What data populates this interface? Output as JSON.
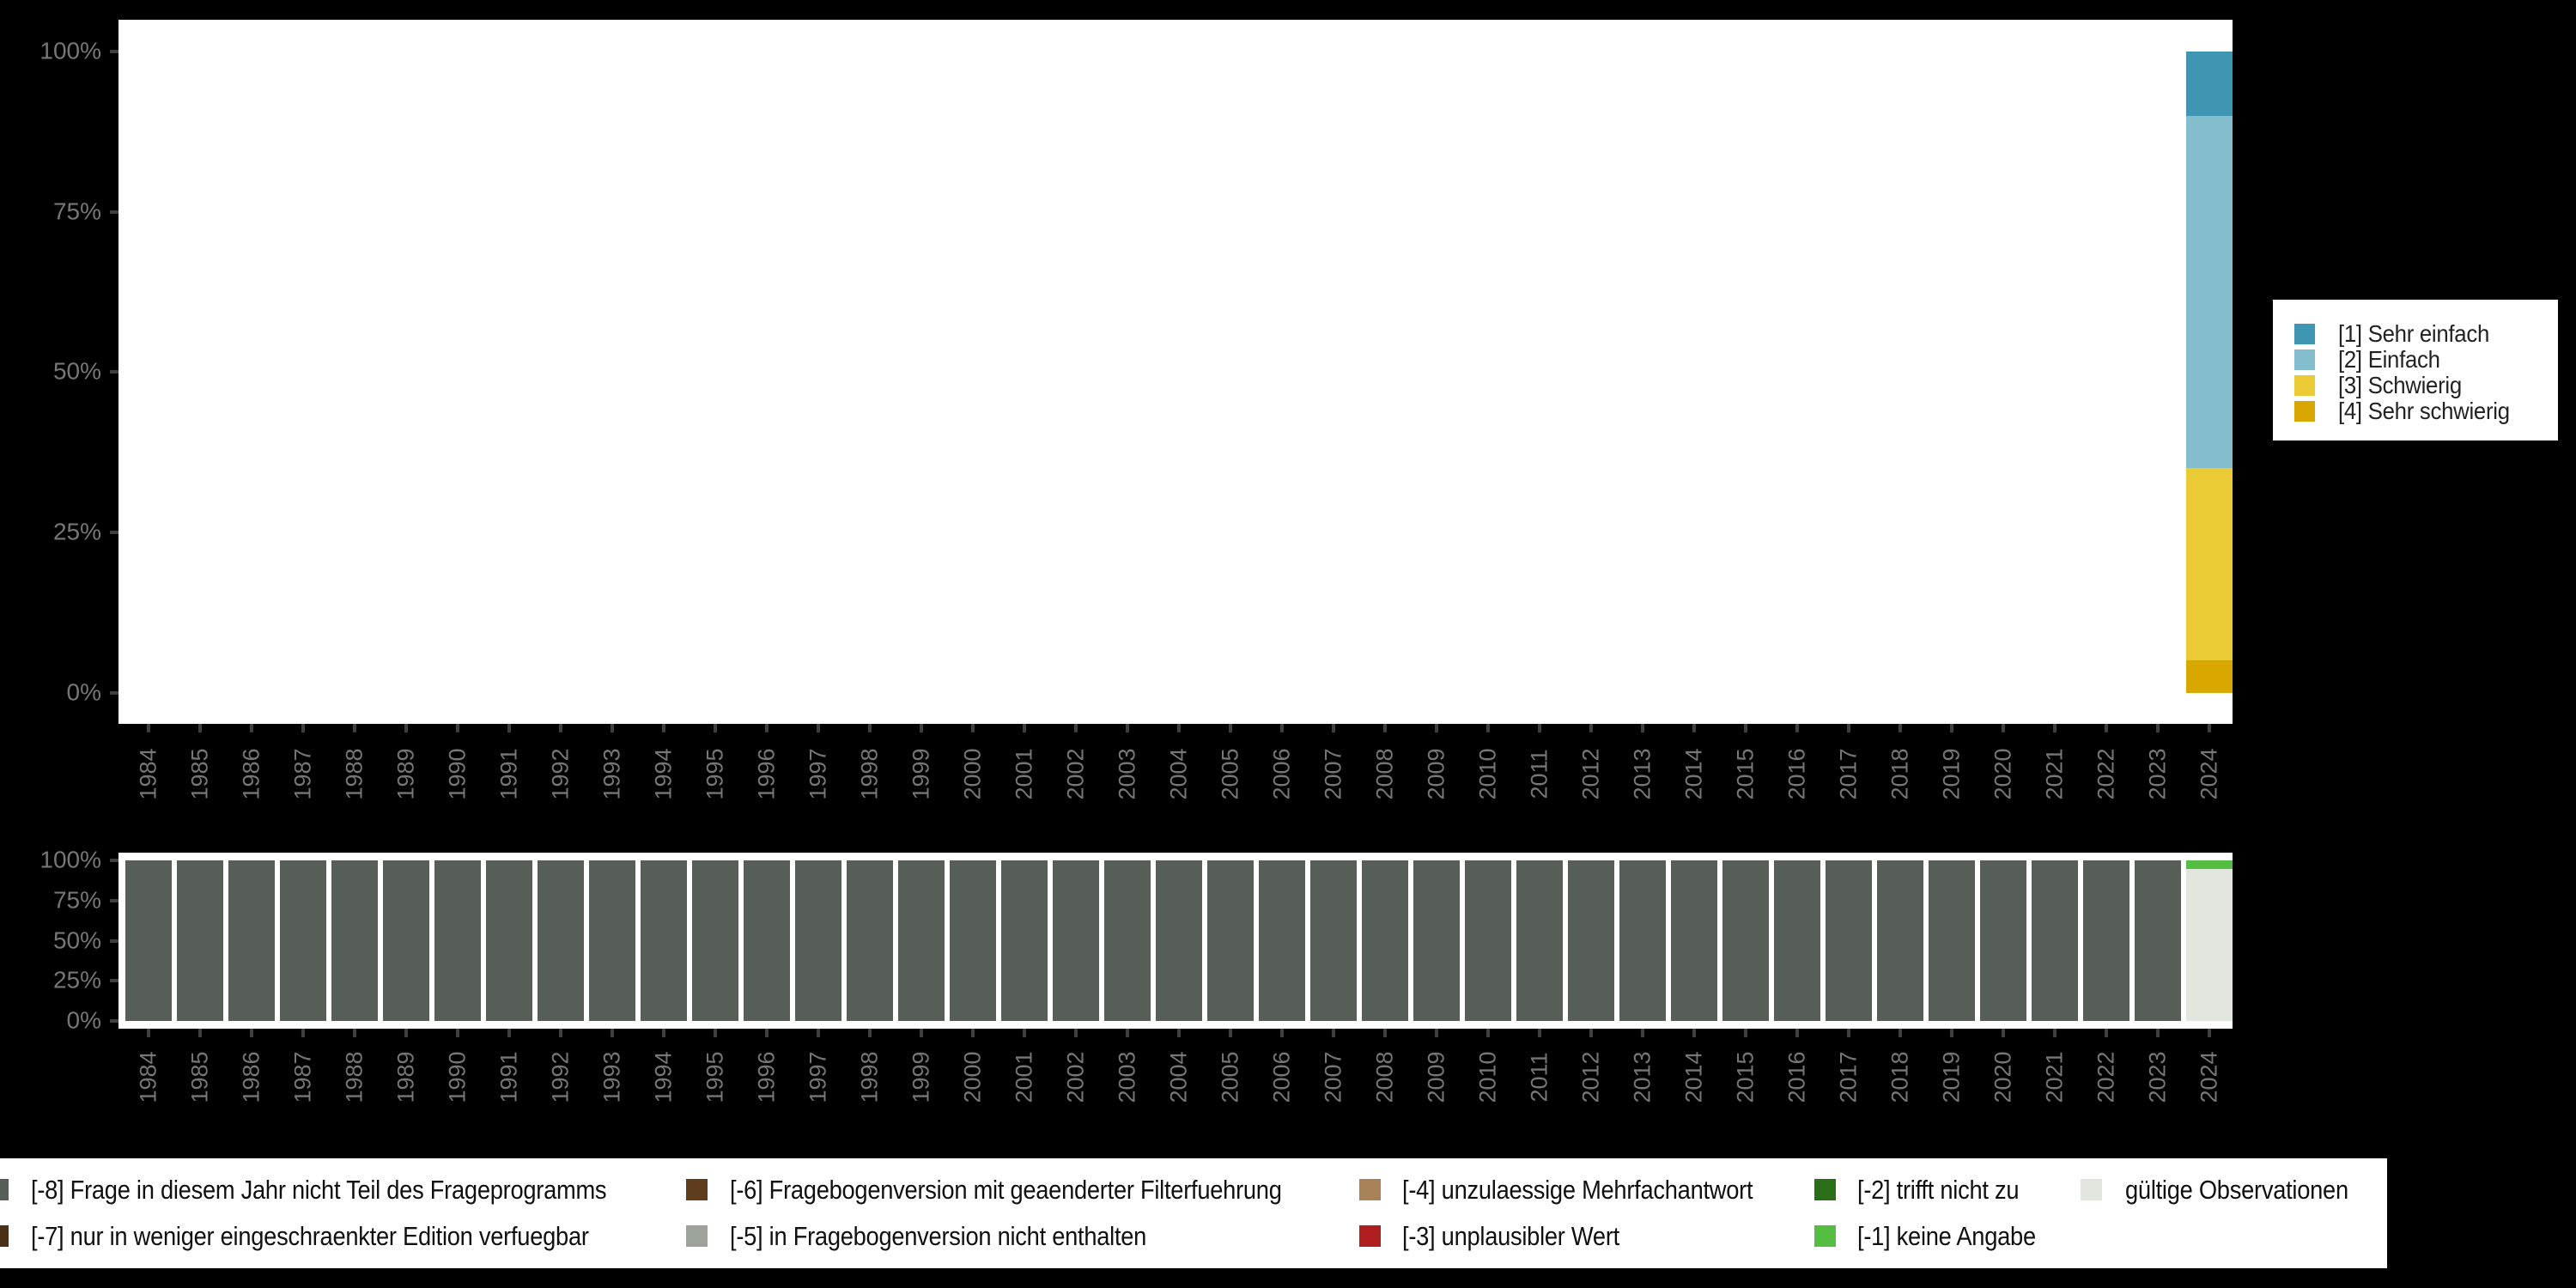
{
  "ui": {
    "background_color": "#000000",
    "panel_background_color": "#ffffff",
    "axis_label_color": "#767676",
    "tick_color": "#3f3f3f",
    "legend_background_color": "#ffffff"
  },
  "chart_data": [
    {
      "id": "variable-values",
      "type": "bar",
      "stacked": true,
      "title": "",
      "xlabel": "",
      "ylabel": "",
      "grid": false,
      "legend_position": "right-outside",
      "ylim": [
        0,
        100
      ],
      "y_tick_labels": [
        "100%",
        "75%",
        "50%",
        "25%",
        "0%"
      ],
      "x_categories": [
        "1984",
        "1985",
        "1986",
        "1987",
        "1988",
        "1989",
        "1990",
        "1991",
        "1992",
        "1993",
        "1994",
        "1995",
        "1996",
        "1997",
        "1998",
        "1999",
        "2000",
        "2001",
        "2002",
        "2003",
        "2004",
        "2005",
        "2006",
        "2007",
        "2008",
        "2009",
        "2010",
        "2011",
        "2012",
        "2013",
        "2014",
        "2015",
        "2016",
        "2017",
        "2018",
        "2019",
        "2020",
        "2021",
        "2022",
        "2023",
        "2024"
      ],
      "series": [
        {
          "name": "[1] Sehr einfach",
          "color": "#3F96B2",
          "values_by_year": {
            "2024": 10
          }
        },
        {
          "name": "[2] Einfach",
          "color": "#84BECE",
          "values_by_year": {
            "2024": 55
          }
        },
        {
          "name": "[3] Schwierig",
          "color": "#EACB36",
          "values_by_year": {
            "2024": 30
          }
        },
        {
          "name": "[4] Sehr schwierig",
          "color": "#D8A800",
          "values_by_year": {
            "2024": 5
          }
        }
      ]
    },
    {
      "id": "missing-values",
      "type": "bar",
      "stacked": true,
      "title": "",
      "xlabel": "",
      "ylabel": "",
      "grid": false,
      "legend_position": "bottom-outside",
      "ylim": [
        0,
        100
      ],
      "y_tick_labels": [
        "100%",
        "75%",
        "50%",
        "25%",
        "0%"
      ],
      "x_categories": [
        "1984",
        "1985",
        "1986",
        "1987",
        "1988",
        "1989",
        "1990",
        "1991",
        "1992",
        "1993",
        "1994",
        "1995",
        "1996",
        "1997",
        "1998",
        "1999",
        "2000",
        "2001",
        "2002",
        "2003",
        "2004",
        "2005",
        "2006",
        "2007",
        "2008",
        "2009",
        "2010",
        "2011",
        "2012",
        "2013",
        "2014",
        "2015",
        "2016",
        "2017",
        "2018",
        "2019",
        "2020",
        "2021",
        "2022",
        "2023",
        "2024"
      ],
      "series": [
        {
          "name": "[-8] Frage in diesem Jahr nicht Teil des Frageprogramms",
          "color": "#575E57",
          "values_by_year": {
            "1984": 100,
            "1985": 100,
            "1986": 100,
            "1987": 100,
            "1988": 100,
            "1989": 100,
            "1990": 100,
            "1991": 100,
            "1992": 100,
            "1993": 100,
            "1994": 100,
            "1995": 100,
            "1996": 100,
            "1997": 100,
            "1998": 100,
            "1999": 100,
            "2000": 100,
            "2001": 100,
            "2002": 100,
            "2003": 100,
            "2004": 100,
            "2005": 100,
            "2006": 100,
            "2007": 100,
            "2008": 100,
            "2009": 100,
            "2010": 100,
            "2011": 100,
            "2012": 100,
            "2013": 100,
            "2014": 100,
            "2015": 100,
            "2016": 100,
            "2017": 100,
            "2018": 100,
            "2019": 100,
            "2020": 100,
            "2021": 100,
            "2022": 100,
            "2023": 100
          }
        },
        {
          "name": "[-7] nur in weniger eingeschraenkter Edition verfuegbar",
          "color": "#4B2F16",
          "values_by_year": {}
        },
        {
          "name": "[-6] Fragebogenversion mit geaenderter Filterfuehrung",
          "color": "#5F3C1E",
          "values_by_year": {}
        },
        {
          "name": "[-5] in Fragebogenversion nicht enthalten",
          "color": "#9DA29B",
          "values_by_year": {}
        },
        {
          "name": "[-4] unzulaessige Mehrfachantwort",
          "color": "#A8835A",
          "values_by_year": {}
        },
        {
          "name": "[-3] unplausibler Wert",
          "color": "#B01F1F",
          "values_by_year": {}
        },
        {
          "name": "[-2] trifft nicht zu",
          "color": "#2A6E17",
          "values_by_year": {}
        },
        {
          "name": "[-1] keine Angabe",
          "color": "#55BD41",
          "values_by_year": {
            "2024": 5
          }
        },
        {
          "name": "gültige Observationen",
          "color": "#E1E6DF",
          "values_by_year": {
            "2024": 95
          }
        }
      ]
    }
  ]
}
